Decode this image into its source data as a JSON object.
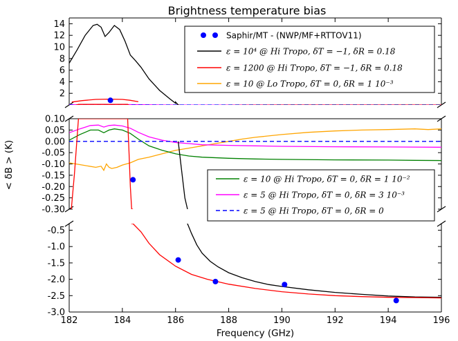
{
  "chart_data": {
    "type": "line",
    "title": "Brightness temperature bias",
    "xlabel": "Frequency (GHz)",
    "ylabel": "< δB > (K)",
    "xlim": [
      182,
      196
    ],
    "x_ticks": [
      "182",
      "184",
      "186",
      "188",
      "190",
      "192",
      "194",
      "196"
    ],
    "panels": [
      {
        "name": "top",
        "ylim": [
          0,
          15
        ],
        "y_ticks": [
          "2",
          "4",
          "6",
          "8",
          "10",
          "12",
          "14"
        ]
      },
      {
        "name": "middle",
        "ylim": [
          -0.3,
          0.1
        ],
        "y_ticks": [
          "0.10",
          "0.05",
          "0.00",
          "-0.05",
          "-0.10",
          "-0.15",
          "-0.20",
          "-0.25",
          "-0.30"
        ]
      },
      {
        "name": "bottom",
        "ylim": [
          -3.0,
          -0.3
        ],
        "y_ticks": [
          "-0.5",
          "-1.0",
          "-1.5",
          "-2.0",
          "-2.5",
          "-3.0"
        ]
      }
    ],
    "grid": false,
    "legends": [
      {
        "placement": "top-right",
        "entries": [
          {
            "key": "saphir",
            "text": "Saphir/MT - (NWP/MF+RTTOV11)",
            "math": false
          },
          {
            "key": "black",
            "text": "ε = 10⁴ @ Hi Tropo, δT = −1, δR = 0.18",
            "math": true
          },
          {
            "key": "red",
            "text": "ε = 1200 @ Hi Tropo, δT = −1, δR = 0.18",
            "math": true
          },
          {
            "key": "orange",
            "text": "ε = 10 @ Lo Tropo, δT = 0, δR = 1 10⁻³",
            "math": true
          }
        ]
      },
      {
        "placement": "right",
        "entries": [
          {
            "key": "green",
            "text": "ε = 10 @ Hi Tropo, δT = 0, δR = 1 10⁻²",
            "math": true
          },
          {
            "key": "magenta",
            "text": "ε = 5 @ Hi Tropo, δT = 0, δR = 3 10⁻³",
            "math": true
          },
          {
            "key": "blue",
            "text": "ε = 5 @ Hi Tropo, δT = 0, δR = 0",
            "math": true
          }
        ]
      }
    ],
    "series": [
      {
        "key": "saphir",
        "name": "Saphir/MT - (NWP/MF+RTTOV11)",
        "color": "#0000ff",
        "marker": "dot",
        "points": [
          [
            183.55,
            0.8
          ],
          [
            184.4,
            -0.17
          ],
          [
            186.1,
            -1.41
          ],
          [
            187.5,
            -2.07
          ],
          [
            190.1,
            -2.16
          ],
          [
            194.3,
            -2.65
          ]
        ]
      },
      {
        "key": "black",
        "name": "ε = 10⁴ @ Hi Tropo, δT = −1, δR = 0.18",
        "color": "#000000",
        "points": [
          [
            182.0,
            7.2
          ],
          [
            182.3,
            9.5
          ],
          [
            182.6,
            12.0
          ],
          [
            182.9,
            13.7
          ],
          [
            183.05,
            13.9
          ],
          [
            183.2,
            13.4
          ],
          [
            183.35,
            11.8
          ],
          [
            183.5,
            12.5
          ],
          [
            183.7,
            13.7
          ],
          [
            183.9,
            13.0
          ],
          [
            184.1,
            11.0
          ],
          [
            184.3,
            8.6
          ],
          [
            184.5,
            7.6
          ],
          [
            184.7,
            6.5
          ],
          [
            185.0,
            4.5
          ],
          [
            185.4,
            2.5
          ],
          [
            185.8,
            1.0
          ],
          [
            186.0,
            0.3
          ],
          [
            186.0,
            0.5
          ],
          [
            186.1,
            0.0
          ],
          [
            186.2,
            -0.1
          ],
          [
            186.35,
            -0.25
          ],
          [
            186.45,
            -0.3
          ],
          [
            186.45,
            -0.3
          ],
          [
            186.6,
            -0.6
          ],
          [
            186.8,
            -0.95
          ],
          [
            187.0,
            -1.2
          ],
          [
            187.3,
            -1.45
          ],
          [
            187.6,
            -1.62
          ],
          [
            188.0,
            -1.8
          ],
          [
            188.5,
            -1.95
          ],
          [
            189.0,
            -2.07
          ],
          [
            189.5,
            -2.16
          ],
          [
            190.0,
            -2.22
          ],
          [
            191.0,
            -2.32
          ],
          [
            192.0,
            -2.4
          ],
          [
            193.0,
            -2.46
          ],
          [
            194.0,
            -2.51
          ],
          [
            195.0,
            -2.54
          ],
          [
            196.0,
            -2.55
          ]
        ]
      },
      {
        "key": "red",
        "name": "ε = 1200 @ Hi Tropo, δT = −1, δR = 0.18",
        "color": "#ff0000",
        "points": [
          [
            182.1,
            0.5
          ],
          [
            182.5,
            0.75
          ],
          [
            183.0,
            0.95
          ],
          [
            183.5,
            1.0
          ],
          [
            184.0,
            0.95
          ],
          [
            184.3,
            0.8
          ],
          [
            184.6,
            0.55
          ],
          [
            182.08,
            -0.3
          ],
          [
            182.2,
            -0.14
          ],
          [
            182.3,
            0.02
          ],
          [
            182.35,
            0.1
          ],
          [
            184.2,
            0.1
          ],
          [
            184.25,
            -0.05
          ],
          [
            184.3,
            -0.2
          ],
          [
            184.35,
            -0.3
          ],
          [
            184.4,
            -0.3
          ],
          [
            184.7,
            -0.55
          ],
          [
            185.0,
            -0.9
          ],
          [
            185.4,
            -1.25
          ],
          [
            186.0,
            -1.6
          ],
          [
            186.6,
            -1.85
          ],
          [
            187.2,
            -2.0
          ],
          [
            188.0,
            -2.15
          ],
          [
            189.0,
            -2.28
          ],
          [
            190.0,
            -2.38
          ],
          [
            191.0,
            -2.45
          ],
          [
            192.0,
            -2.5
          ],
          [
            193.0,
            -2.53
          ],
          [
            194.0,
            -2.55
          ],
          [
            195.0,
            -2.56
          ],
          [
            196.0,
            -2.57
          ]
        ]
      },
      {
        "key": "orange",
        "name": "ε = 10 @ Lo Tropo, δT = 0, δR = 1 10⁻³",
        "color": "#ffa500",
        "points": [
          [
            182.0,
            -0.095
          ],
          [
            182.5,
            -0.105
          ],
          [
            183.0,
            -0.115
          ],
          [
            183.2,
            -0.11
          ],
          [
            183.3,
            -0.128
          ],
          [
            183.4,
            -0.1
          ],
          [
            183.5,
            -0.115
          ],
          [
            183.6,
            -0.12
          ],
          [
            183.8,
            -0.115
          ],
          [
            184.0,
            -0.105
          ],
          [
            184.3,
            -0.095
          ],
          [
            184.6,
            -0.08
          ],
          [
            185.0,
            -0.07
          ],
          [
            185.5,
            -0.055
          ],
          [
            186.0,
            -0.04
          ],
          [
            186.5,
            -0.03
          ],
          [
            187.0,
            -0.02
          ],
          [
            187.5,
            -0.01
          ],
          [
            188.0,
            0.0
          ],
          [
            188.5,
            0.01
          ],
          [
            189.0,
            0.018
          ],
          [
            190.0,
            0.03
          ],
          [
            191.0,
            0.04
          ],
          [
            192.0,
            0.046
          ],
          [
            193.0,
            0.05
          ],
          [
            194.0,
            0.052
          ],
          [
            195.0,
            0.055
          ],
          [
            195.5,
            0.052
          ],
          [
            196.0,
            0.055
          ]
        ]
      },
      {
        "key": "green",
        "name": "ε = 10 @ Hi Tropo, δT = 0, δR = 1 10⁻²",
        "color": "#008000",
        "points": [
          [
            182.0,
            0.005
          ],
          [
            182.4,
            0.03
          ],
          [
            182.8,
            0.05
          ],
          [
            183.1,
            0.05
          ],
          [
            183.3,
            0.038
          ],
          [
            183.5,
            0.05
          ],
          [
            183.7,
            0.055
          ],
          [
            184.0,
            0.05
          ],
          [
            184.3,
            0.035
          ],
          [
            184.6,
            0.01
          ],
          [
            185.0,
            -0.02
          ],
          [
            185.5,
            -0.04
          ],
          [
            186.0,
            -0.055
          ],
          [
            186.5,
            -0.065
          ],
          [
            187.0,
            -0.07
          ],
          [
            188.0,
            -0.075
          ],
          [
            189.0,
            -0.078
          ],
          [
            190.0,
            -0.08
          ],
          [
            192.0,
            -0.082
          ],
          [
            194.0,
            -0.083
          ],
          [
            195.0,
            -0.084
          ],
          [
            196.0,
            -0.085
          ]
        ]
      },
      {
        "key": "magenta",
        "name": "ε = 5 @ Hi Tropo, δT = 0, δR = 3 10⁻³",
        "color": "#ff00ff",
        "points": [
          [
            182.0,
            0.038
          ],
          [
            182.4,
            0.055
          ],
          [
            182.8,
            0.07
          ],
          [
            183.1,
            0.072
          ],
          [
            183.3,
            0.063
          ],
          [
            183.5,
            0.07
          ],
          [
            183.7,
            0.072
          ],
          [
            184.0,
            0.068
          ],
          [
            184.3,
            0.058
          ],
          [
            184.6,
            0.04
          ],
          [
            185.0,
            0.02
          ],
          [
            185.5,
            0.005
          ],
          [
            186.0,
            -0.005
          ],
          [
            186.5,
            -0.01
          ],
          [
            187.0,
            -0.015
          ],
          [
            188.0,
            -0.018
          ],
          [
            189.0,
            -0.02
          ],
          [
            190.0,
            -0.022
          ],
          [
            192.0,
            -0.024
          ],
          [
            194.0,
            -0.025
          ],
          [
            196.0,
            -0.026
          ]
        ]
      },
      {
        "key": "blue",
        "name": "ε = 5 @ Hi Tropo, δT = 0, δR = 0",
        "color": "#0000ff",
        "dashed": true,
        "points": [
          [
            182.0,
            0.0
          ],
          [
            196.0,
            0.0
          ]
        ]
      }
    ]
  }
}
